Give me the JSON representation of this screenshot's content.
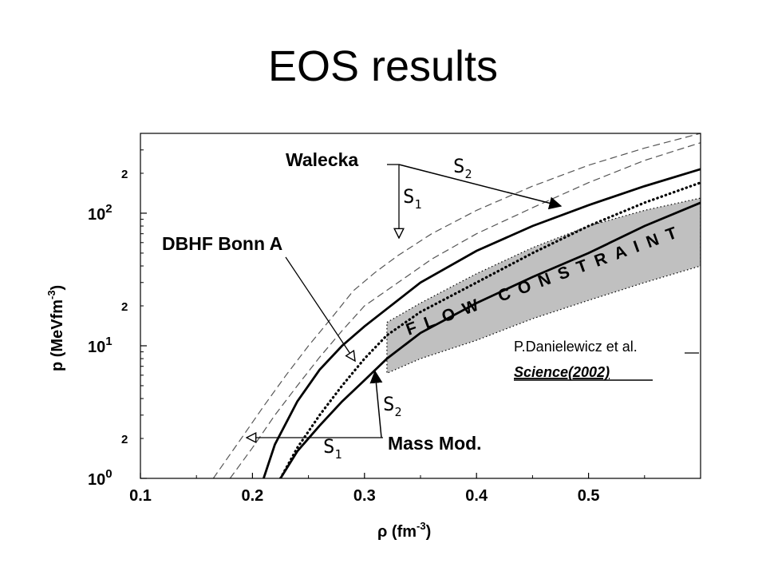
{
  "slide": {
    "title": "EOS results"
  },
  "citation": {
    "author": "P.Danielewicz et al.",
    "reference": "Science(2002)"
  },
  "chart_data": {
    "type": "line",
    "xlabel": "ρ (fm",
    "xlabel_exp": "-3",
    "xlabel_close": ")",
    "ylabel": "p (MeVfm",
    "ylabel_exp": "-3",
    "ylabel_close": ")",
    "xlim": [
      0.1,
      0.6
    ],
    "ylim": [
      1,
      400
    ],
    "yscale": "log",
    "x_ticks": [
      "0.1",
      "0.2",
      "0.3",
      "0.4",
      "0.5"
    ],
    "y_ticks": [
      {
        "base": "10",
        "exp": "0"
      },
      {
        "base": "10",
        "exp": "1"
      },
      {
        "base": "10",
        "exp": "2"
      }
    ],
    "y_minor_label": "2",
    "series": [
      {
        "name": "Walecka",
        "style": "dashed",
        "color": "#555555",
        "x": [
          0.165,
          0.19,
          0.21,
          0.23,
          0.25,
          0.27,
          0.29,
          0.31,
          0.33,
          0.36,
          0.4,
          0.45,
          0.5,
          0.55,
          0.6
        ],
        "y": [
          1.0,
          2.0,
          3.5,
          6.0,
          10,
          16,
          26,
          36,
          48,
          70,
          105,
          160,
          230,
          310,
          400
        ]
      },
      {
        "name": "Walecka",
        "style": "dashed",
        "color": "#555555",
        "x": [
          0.18,
          0.2,
          0.22,
          0.24,
          0.26,
          0.28,
          0.3,
          0.33,
          0.36,
          0.4,
          0.45,
          0.5,
          0.55,
          0.6
        ],
        "y": [
          1.0,
          1.7,
          3.0,
          5.0,
          8.2,
          13,
          20,
          30,
          45,
          70,
          110,
          170,
          250,
          340
        ]
      },
      {
        "name": "DBHF Bonn A",
        "style": "dotted",
        "color": "#000000",
        "x": [
          0.225,
          0.24,
          0.26,
          0.28,
          0.3,
          0.32,
          0.35,
          0.4,
          0.45,
          0.5,
          0.55,
          0.6
        ],
        "y": [
          1.0,
          1.7,
          3.0,
          5.0,
          8.0,
          12,
          18,
          30,
          50,
          80,
          120,
          170
        ]
      },
      {
        "name": "Mass Mod.",
        "style": "solid",
        "color": "#000000",
        "x": [
          0.21,
          0.22,
          0.24,
          0.26,
          0.28,
          0.3,
          0.32,
          0.35,
          0.4,
          0.45,
          0.5,
          0.55,
          0.6
        ],
        "y": [
          1.0,
          1.8,
          3.8,
          6.6,
          10,
          14,
          19,
          30,
          52,
          80,
          115,
          160,
          215
        ]
      },
      {
        "name": "Mass Mod.",
        "style": "solid",
        "color": "#000000",
        "x": [
          0.225,
          0.24,
          0.26,
          0.28,
          0.3,
          0.32,
          0.35,
          0.4,
          0.45,
          0.5,
          0.55,
          0.6
        ],
        "y": [
          1.0,
          1.6,
          2.5,
          3.8,
          5.5,
          8.0,
          12.5,
          21,
          33,
          50,
          80,
          120
        ]
      }
    ],
    "band": {
      "label": "FLOW CONSTRAINT",
      "fill": "#c0c0c0",
      "x": [
        0.32,
        0.35,
        0.4,
        0.45,
        0.5,
        0.55,
        0.6
      ],
      "lower": [
        6.2,
        8.0,
        11,
        16,
        22,
        30,
        40
      ],
      "upper": [
        15,
        21,
        35,
        55,
        80,
        105,
        130
      ]
    },
    "annotations": {
      "walecka": "Walecka",
      "dbhf": "DBHF Bonn A",
      "massmod": "Mass Mod.",
      "s1": "S",
      "s1_sub": "1",
      "s2": "S",
      "s2_sub": "2"
    }
  }
}
